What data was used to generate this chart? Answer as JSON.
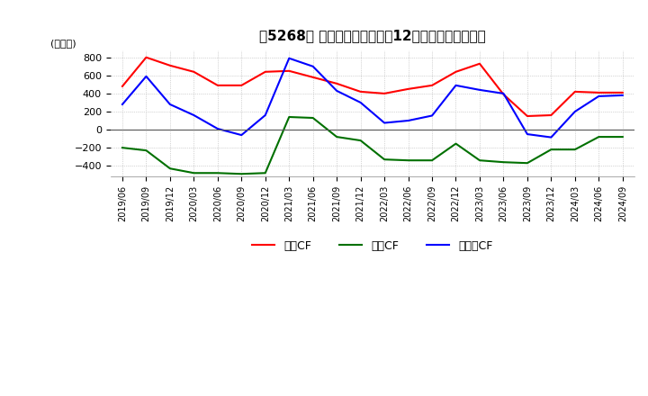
{
  "title_text": "【5268】 キャッシュフローの12か月移動合計の推移",
  "ylabel": "(百万円)",
  "ylim": [
    -520,
    880
  ],
  "yticks": [
    -400,
    -200,
    0,
    200,
    400,
    600,
    800
  ],
  "x_labels": [
    "2019/06",
    "2019/09",
    "2019/12",
    "2020/03",
    "2020/06",
    "2020/09",
    "2020/12",
    "2021/03",
    "2021/06",
    "2021/09",
    "2021/12",
    "2022/03",
    "2022/06",
    "2022/09",
    "2022/12",
    "2023/03",
    "2023/06",
    "2023/09",
    "2023/12",
    "2024/03",
    "2024/06",
    "2024/09"
  ],
  "operating_cf": [
    480,
    800,
    710,
    640,
    490,
    490,
    640,
    650,
    580,
    510,
    420,
    400,
    450,
    490,
    640,
    730,
    390,
    150,
    160,
    420,
    410,
    410
  ],
  "investing_cf": [
    -200,
    -230,
    -430,
    -480,
    -480,
    -490,
    -480,
    140,
    130,
    -80,
    -120,
    -330,
    -340,
    -340,
    -155,
    -340,
    -360,
    -370,
    -220,
    -220,
    -80,
    -80
  ],
  "free_cf": [
    280,
    590,
    280,
    160,
    10,
    -60,
    160,
    790,
    700,
    430,
    300,
    75,
    100,
    155,
    490,
    440,
    400,
    -50,
    -85,
    200,
    370,
    380
  ],
  "operating_color": "#ff0000",
  "investing_color": "#007000",
  "free_cf_color": "#0000ff",
  "legend_labels": [
    "営業CF",
    "投資CF",
    "フリーCF"
  ],
  "background_color": "#ffffff",
  "grid_color": "#b0b0b0"
}
